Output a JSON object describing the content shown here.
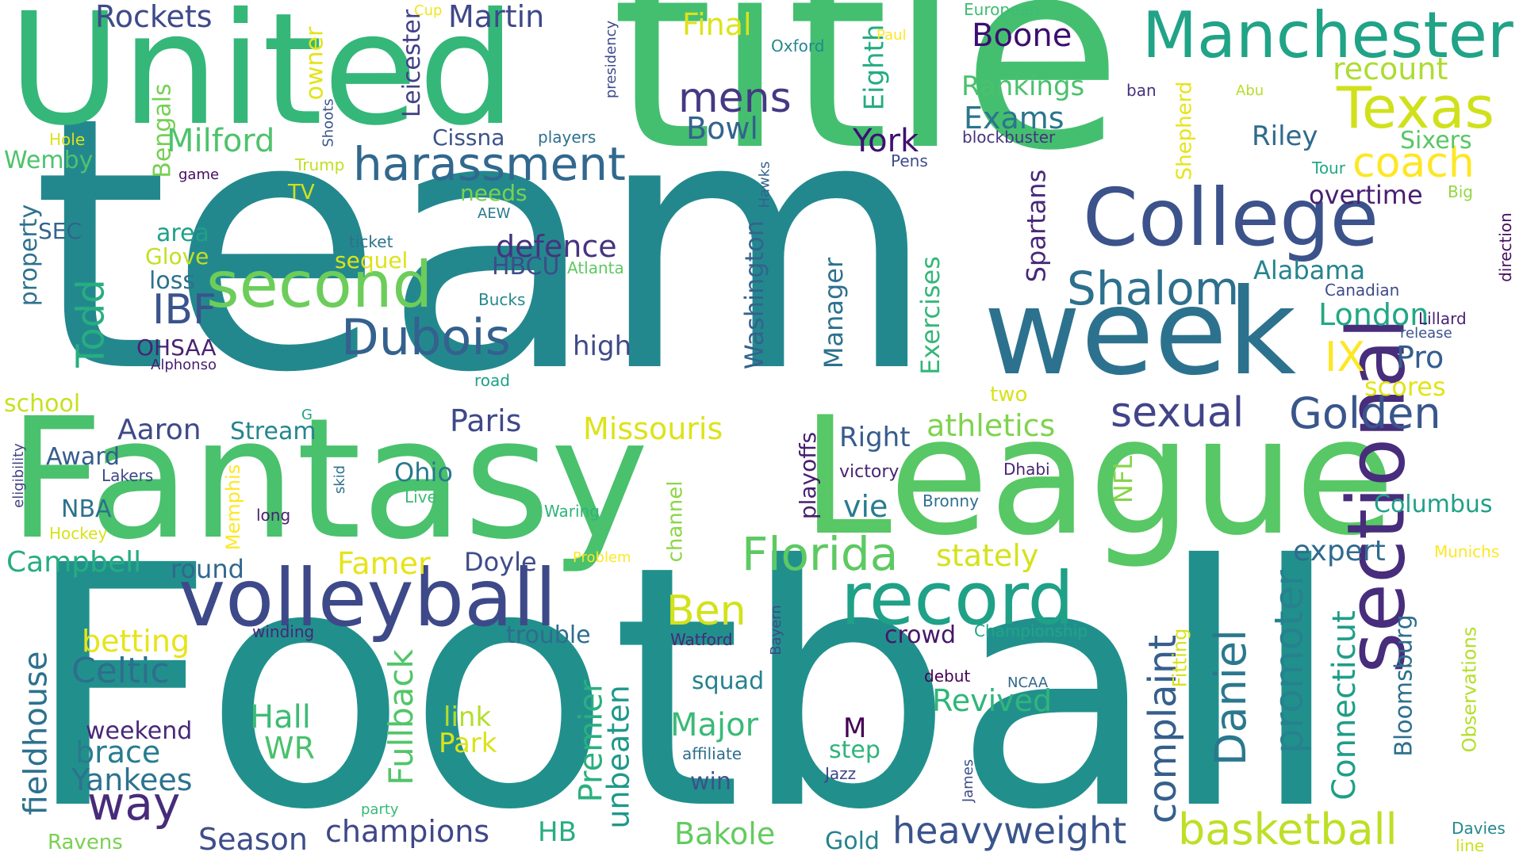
{
  "words": [
    {
      "text": "team",
      "color": "#23888e"
    },
    {
      "text": "Football",
      "color": "#21908d"
    },
    {
      "text": "title",
      "color": "#44bf70"
    },
    {
      "text": "United",
      "color": "#35b779"
    },
    {
      "text": "Fantasy",
      "color": "#4ac16d"
    },
    {
      "text": "League",
      "color": "#58c765"
    },
    {
      "text": "week",
      "color": "#2c728e"
    },
    {
      "text": "College",
      "color": "#3b528b"
    },
    {
      "text": "Manchester",
      "color": "#20a386"
    },
    {
      "text": "sectional",
      "color": "#472d7b"
    },
    {
      "text": "volleyball",
      "color": "#3e4989"
    },
    {
      "text": "record",
      "color": "#1fa187"
    },
    {
      "text": "second",
      "color": "#6ccd5a"
    },
    {
      "text": "Texas",
      "color": "#d0e11c"
    },
    {
      "text": "harassment",
      "color": "#31688e"
    },
    {
      "text": "Dubois",
      "color": "#34618d"
    },
    {
      "text": "Florida",
      "color": "#5ec962"
    },
    {
      "text": "Shalom",
      "color": "#2d708e"
    },
    {
      "text": "Golden",
      "color": "#39568c"
    },
    {
      "text": "basketball",
      "color": "#bddf26"
    },
    {
      "text": "heavyweight",
      "color": "#3a548c"
    },
    {
      "text": "complaint",
      "color": "#355f8d"
    },
    {
      "text": "Daniel",
      "color": "#2a788e"
    },
    {
      "text": "promoter",
      "color": "#26828e"
    },
    {
      "text": "sexual",
      "color": "#414487"
    },
    {
      "text": "coach",
      "color": "#fde725"
    },
    {
      "text": "Connecticut",
      "color": "#1f9e89"
    },
    {
      "text": "mens",
      "color": "#443983"
    },
    {
      "text": "way",
      "color": "#472c7a"
    },
    {
      "text": "Celtic",
      "color": "#2e6e8e"
    },
    {
      "text": "Fullback",
      "color": "#52c569"
    },
    {
      "text": "fieldhouse",
      "color": "#2d718e"
    },
    {
      "text": "champions",
      "color": "#3f4788"
    },
    {
      "text": "Bakole",
      "color": "#63cb5f"
    },
    {
      "text": "Season",
      "color": "#3d4e8a"
    },
    {
      "text": "Yankees",
      "color": "#2c738e"
    },
    {
      "text": "brace",
      "color": "#287c8e"
    },
    {
      "text": "Hall",
      "color": "#3dbc74"
    },
    {
      "text": "Major",
      "color": "#3aba76"
    },
    {
      "text": "Premier",
      "color": "#2ab07f"
    },
    {
      "text": "unbeaten",
      "color": "#1f988b"
    },
    {
      "text": "Boone",
      "color": "#3b0f70"
    },
    {
      "text": "Martin",
      "color": "#3f4889"
    },
    {
      "text": "Rockets",
      "color": "#3e4a89"
    },
    {
      "text": "Milford",
      "color": "#4ec36b"
    },
    {
      "text": "Bowl",
      "color": "#33638d"
    },
    {
      "text": "York",
      "color": "#3f0f72"
    },
    {
      "text": "Exams",
      "color": "#2a768e"
    },
    {
      "text": "Rankings",
      "color": "#4ac16d"
    },
    {
      "text": "recount",
      "color": "#addc30"
    },
    {
      "text": "Riley",
      "color": "#306a8e"
    },
    {
      "text": "Sixers",
      "color": "#58c765"
    },
    {
      "text": "overtime",
      "color": "#481f70"
    },
    {
      "text": "Alabama",
      "color": "#25848e"
    },
    {
      "text": "London",
      "color": "#22a884"
    },
    {
      "text": "IX",
      "color": "#fde725"
    },
    {
      "text": "Pro",
      "color": "#355e8d"
    },
    {
      "text": "scores",
      "color": "#e2e418"
    },
    {
      "text": "IBF",
      "color": "#3a538b"
    },
    {
      "text": "Todd",
      "color": "#27ad81"
    },
    {
      "text": "defence",
      "color": "#46337f"
    },
    {
      "text": "HBCU",
      "color": "#3e4c8a"
    },
    {
      "text": "high",
      "color": "#3e4a89"
    },
    {
      "text": "Paris",
      "color": "#3e4989"
    },
    {
      "text": "Missouris",
      "color": "#dde318"
    },
    {
      "text": "athletics",
      "color": "#7fd34e"
    },
    {
      "text": "Right",
      "color": "#365c8d"
    },
    {
      "text": "victory",
      "color": "#482475"
    },
    {
      "text": "vie",
      "color": "#287d8e"
    },
    {
      "text": "NFL",
      "color": "#86d549"
    },
    {
      "text": "stately",
      "color": "#d5e21a"
    },
    {
      "text": "expert",
      "color": "#2f6b8e"
    },
    {
      "text": "Columbus",
      "color": "#1fa088"
    },
    {
      "text": "Aaron",
      "color": "#3e4a89"
    },
    {
      "text": "Stream",
      "color": "#24868e"
    },
    {
      "text": "Award",
      "color": "#365d8d"
    },
    {
      "text": "Ohio",
      "color": "#2a788e"
    },
    {
      "text": "NBA",
      "color": "#2d718e"
    },
    {
      "text": "Campbell",
      "color": "#27ad81"
    },
    {
      "text": "round",
      "color": "#31688e"
    },
    {
      "text": "Famer",
      "color": "#e5e419"
    },
    {
      "text": "Doyle",
      "color": "#3e4c8a"
    },
    {
      "text": "betting",
      "color": "#e7e419"
    },
    {
      "text": "trouble",
      "color": "#2f6c8e"
    },
    {
      "text": "Ben",
      "color": "#d2e21b"
    },
    {
      "text": "crowd",
      "color": "#481668"
    },
    {
      "text": "Revived",
      "color": "#31b57b"
    },
    {
      "text": "squad",
      "color": "#26828e"
    },
    {
      "text": "weekend",
      "color": "#482878"
    },
    {
      "text": "WR",
      "color": "#4ac16d"
    },
    {
      "text": "link",
      "color": "#b5de2b"
    },
    {
      "text": "Park",
      "color": "#dae319"
    },
    {
      "text": "HB",
      "color": "#28ae80"
    },
    {
      "text": "win",
      "color": "#3b528b"
    },
    {
      "text": "step",
      "color": "#2fb47c"
    },
    {
      "text": "Gold",
      "color": "#25838e"
    },
    {
      "text": "Final",
      "color": "#dde318"
    },
    {
      "text": "Leicester",
      "color": "#424086"
    },
    {
      "text": "owner",
      "color": "#e2e418"
    },
    {
      "text": "Bengals",
      "color": "#75d054"
    },
    {
      "text": "Cissna",
      "color": "#3b528b"
    },
    {
      "text": "Eighth",
      "color": "#25ac82"
    },
    {
      "text": "Washington",
      "color": "#33638d"
    },
    {
      "text": "Manager",
      "color": "#2c718e"
    },
    {
      "text": "Exercises",
      "color": "#35b779"
    },
    {
      "text": "Spartans",
      "color": "#482878"
    },
    {
      "text": "playoffs",
      "color": "#481d6f"
    },
    {
      "text": "channel",
      "color": "#8bd646"
    },
    {
      "text": "Wemby",
      "color": "#4ec36b"
    },
    {
      "text": "property",
      "color": "#2d718e"
    },
    {
      "text": "SEC",
      "color": "#33638d"
    },
    {
      "text": "area",
      "color": "#1fa187"
    },
    {
      "text": "Glove",
      "color": "#c2df23"
    },
    {
      "text": "loss",
      "color": "#2c728e"
    },
    {
      "text": "OHSAA",
      "color": "#482374"
    },
    {
      "text": "school",
      "color": "#c8e020"
    },
    {
      "text": "sequel",
      "color": "#dde318"
    },
    {
      "text": "needs",
      "color": "#7ad151"
    },
    {
      "text": "TV",
      "color": "#d2e21b"
    },
    {
      "text": "Shepherd",
      "color": "#e7e419"
    },
    {
      "text": "two",
      "color": "#d8e219"
    },
    {
      "text": "Memphis",
      "color": "#fde725"
    },
    {
      "text": "Fitting",
      "color": "#d8e219"
    },
    {
      "text": "Bloomsburg",
      "color": "#2d708e"
    },
    {
      "text": "Observations",
      "color": "#b5de2b"
    },
    {
      "text": "M",
      "color": "#440154"
    },
    {
      "text": "European",
      "color": "#3dbc74"
    },
    {
      "text": "Oxford",
      "color": "#23888e"
    },
    {
      "text": "Paul",
      "color": "#fde725"
    },
    {
      "text": "ban",
      "color": "#46327e"
    },
    {
      "text": "Abu",
      "color": "#b5de2b"
    },
    {
      "text": "blockbuster",
      "color": "#46337f"
    },
    {
      "text": "Tour",
      "color": "#22a785"
    },
    {
      "text": "Big",
      "color": "#93d741"
    },
    {
      "text": "Canadian",
      "color": "#3e4c8a"
    },
    {
      "text": "Lillard",
      "color": "#482374"
    },
    {
      "text": "release",
      "color": "#3b528b"
    },
    {
      "text": "direction",
      "color": "#470e61"
    },
    {
      "text": "Munichs",
      "color": "#fde725"
    },
    {
      "text": "Davies",
      "color": "#23898e"
    },
    {
      "text": "line",
      "color": "#cae11f"
    },
    {
      "text": "Championship",
      "color": "#20a486"
    },
    {
      "text": "Watford",
      "color": "#482878"
    },
    {
      "text": "Bayern",
      "color": "#3e4989"
    },
    {
      "text": "debut",
      "color": "#440154"
    },
    {
      "text": "NCAA",
      "color": "#31688e"
    },
    {
      "text": "affiliate",
      "color": "#2e6e8e"
    },
    {
      "text": "Jazz",
      "color": "#3f4788"
    },
    {
      "text": "James",
      "color": "#3d4e8a"
    },
    {
      "text": "Bronny",
      "color": "#2e6f8e"
    },
    {
      "text": "Dhabi",
      "color": "#482475"
    },
    {
      "text": "Problem",
      "color": "#fde725"
    },
    {
      "text": "Waring",
      "color": "#2fb47c"
    },
    {
      "text": "Live",
      "color": "#3bbb75"
    },
    {
      "text": "skid",
      "color": "#2d708e"
    },
    {
      "text": "long",
      "color": "#481f70"
    },
    {
      "text": "winding",
      "color": "#482677"
    },
    {
      "text": "party",
      "color": "#38b977"
    },
    {
      "text": "Ravens",
      "color": "#7ad151"
    },
    {
      "text": "Hockey",
      "color": "#d8e219"
    },
    {
      "text": "Lakers",
      "color": "#3e4989"
    },
    {
      "text": "eligibility",
      "color": "#414487"
    },
    {
      "text": "G",
      "color": "#20a386"
    },
    {
      "text": "road",
      "color": "#1fa088"
    },
    {
      "text": "Alphonso",
      "color": "#482071"
    },
    {
      "text": "Atlanta",
      "color": "#5ec962"
    },
    {
      "text": "Bucks",
      "color": "#23898e"
    },
    {
      "text": "AEW",
      "color": "#2a788e"
    },
    {
      "text": "ticket",
      "color": "#2d718e"
    },
    {
      "text": "game",
      "color": "#460b5e"
    },
    {
      "text": "Trump",
      "color": "#c2df23"
    },
    {
      "text": "Hole",
      "color": "#dde318"
    },
    {
      "text": "Shoots",
      "color": "#39568c"
    },
    {
      "text": "players",
      "color": "#2d708e"
    },
    {
      "text": "presidency",
      "color": "#3e4a89"
    },
    {
      "text": "Cup",
      "color": "#f1e51d"
    },
    {
      "text": "Pens",
      "color": "#3e4c8a"
    },
    {
      "text": "Hawks",
      "color": "#33638d"
    }
  ]
}
